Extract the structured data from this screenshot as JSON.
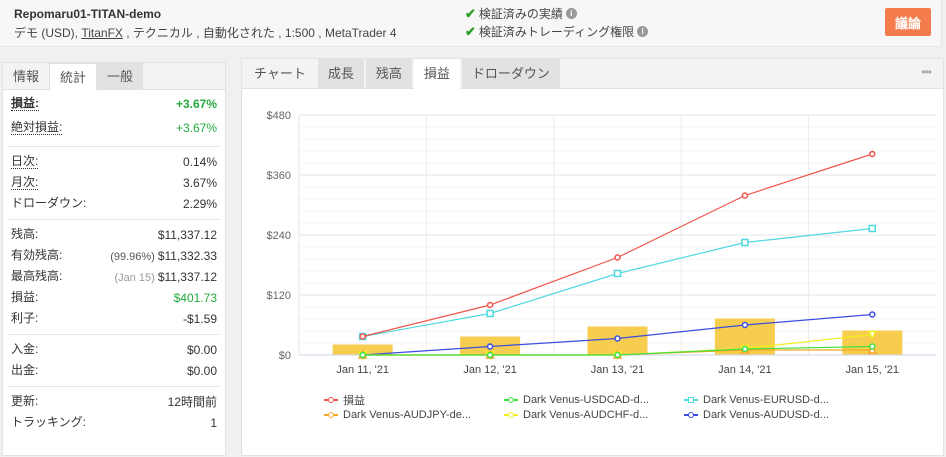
{
  "header": {
    "account_name": "Repomaru01-TITAN-demo",
    "info_prefix": "デモ (USD), ",
    "broker": "TitanFX",
    "info_suffix": " , テクニカル , 自動化された , 1:500 , MetaTrader 4",
    "verified_track": "検証済みの実績",
    "verified_trading": "検証済みトレーディング権限",
    "discuss_label": "議論"
  },
  "left_tabs": [
    "情報",
    "統計",
    "一般"
  ],
  "stats": {
    "gain": {
      "label": "損益:",
      "value": "+3.67%"
    },
    "abs_gain": {
      "label": "絶対損益:",
      "value": "+3.67%"
    },
    "daily": {
      "label": "日次:",
      "value": "0.14%"
    },
    "monthly": {
      "label": "月次:",
      "value": "3.67%"
    },
    "drawdown": {
      "label": "ドローダウン:",
      "value": "2.29%"
    },
    "balance": {
      "label": "残高:",
      "value": "$11,337.12"
    },
    "equity": {
      "label": "有効残高:",
      "sub": "(99.96%)",
      "value": "$11,332.33"
    },
    "highest": {
      "label": "最高残高:",
      "sub": "(Jan 15)",
      "value": "$11,337.12"
    },
    "profit": {
      "label": "損益:",
      "value": "$401.73"
    },
    "interest": {
      "label": "利子:",
      "value": "-$1.59"
    },
    "deposits": {
      "label": "入金:",
      "value": "$0.00"
    },
    "withdrawals": {
      "label": "出金:",
      "value": "$0.00"
    },
    "updated": {
      "label": "更新:",
      "value": "12時間前"
    },
    "tracking": {
      "label": "トラッキング:",
      "value": "1"
    }
  },
  "chart_tabs": [
    "チャート",
    "成長",
    "残高",
    "損益",
    "ドローダウン"
  ],
  "more_label": "•••",
  "chart_data": {
    "type": "line",
    "categories": [
      "Jan 11, '21",
      "Jan 12, '21",
      "Jan 13, '21",
      "Jan 14, '21",
      "Jan 15, '21"
    ],
    "ylim": [
      0,
      480
    ],
    "yticks": [
      "$0",
      "$120",
      "$240",
      "$360",
      "$480"
    ],
    "ytick_values": [
      0,
      120,
      240,
      360,
      480
    ],
    "bars": {
      "color": "#f7cd4f",
      "values": [
        21,
        37,
        57,
        73,
        49
      ]
    },
    "series": [
      {
        "name": "損益",
        "color": "#f0534a",
        "marker": "circle",
        "values": [
          37,
          100,
          195,
          319,
          402
        ]
      },
      {
        "name": "Dark Venus-USDCAD-d...",
        "color": "#3ee03e",
        "marker": "circle",
        "values": [
          0,
          0,
          0,
          12,
          17
        ]
      },
      {
        "name": "Dark Venus-EURUSD-d...",
        "color": "#4fd8e0",
        "marker": "square",
        "values": [
          37,
          83,
          163,
          225,
          253
        ]
      },
      {
        "name": "Dark Venus-AUDJPY-de...",
        "color": "#f5a623",
        "marker": "triangle",
        "values": [
          0,
          0,
          0,
          10,
          10
        ]
      },
      {
        "name": "Dark Venus-AUDCHF-d...",
        "color": "#f0f020",
        "marker": "triangle-down",
        "values": [
          0,
          0,
          0,
          13,
          41
        ]
      },
      {
        "name": "Dark Venus-AUDUSD-d...",
        "color": "#3a4de0",
        "marker": "circle",
        "values": [
          0,
          17,
          33,
          60,
          81
        ]
      }
    ]
  }
}
